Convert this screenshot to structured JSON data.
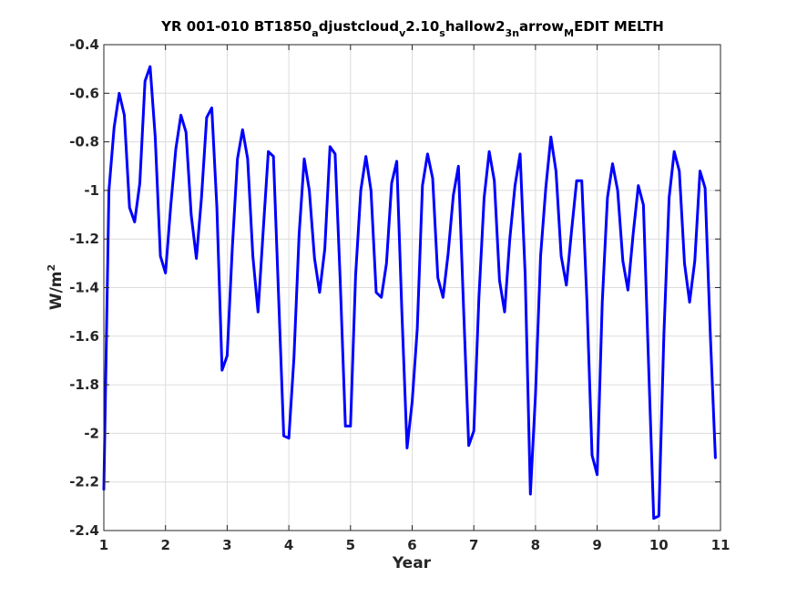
{
  "chart_data": {
    "type": "line",
    "title": {
      "parts": [
        {
          "text": "YR 001-010 BT1850",
          "shift": "base"
        },
        {
          "text": "a",
          "shift": "sub"
        },
        {
          "text": "djustcloud",
          "shift": "base"
        },
        {
          "text": "v",
          "shift": "sub"
        },
        {
          "text": "2.10",
          "shift": "base"
        },
        {
          "text": "s",
          "shift": "sub"
        },
        {
          "text": "hallow2",
          "shift": "base"
        },
        {
          "text": "3n",
          "shift": "sub"
        },
        {
          "text": "arrow",
          "shift": "base"
        },
        {
          "text": "M",
          "shift": "sub"
        },
        {
          "text": "EDIT MELTH",
          "shift": "base"
        }
      ]
    },
    "xlabel": "Year",
    "ylabel": {
      "base": "W/m",
      "sup": "2"
    },
    "xlim": [
      1,
      11
    ],
    "ylim": [
      -2.4,
      -0.4
    ],
    "xticks": [
      "1",
      "2",
      "3",
      "4",
      "5",
      "6",
      "7",
      "8",
      "9",
      "10",
      "11"
    ],
    "yticks": [
      "-0.4",
      "-0.6",
      "-0.8",
      "-1",
      "-1.2",
      "-1.4",
      "-1.6",
      "-1.8",
      "-2",
      "-2.2",
      "-2.4"
    ],
    "grid": true,
    "line_color": "#0000ff",
    "series": [
      {
        "x": [
          1.0,
          1.083,
          1.167,
          1.25,
          1.333,
          1.417,
          1.5,
          1.583,
          1.667,
          1.75,
          1.833,
          1.917,
          2.0,
          2.083,
          2.167,
          2.25,
          2.333,
          2.417,
          2.5,
          2.583,
          2.667,
          2.75,
          2.833,
          2.917,
          3.0,
          3.083,
          3.167,
          3.25,
          3.333,
          3.417,
          3.5,
          3.583,
          3.667,
          3.75,
          3.833,
          3.917,
          4.0,
          4.083,
          4.167,
          4.25,
          4.333,
          4.417,
          4.5,
          4.583,
          4.667,
          4.75,
          4.833,
          4.917,
          5.0,
          5.083,
          5.167,
          5.25,
          5.333,
          5.417,
          5.5,
          5.583,
          5.667,
          5.75,
          5.833,
          5.917,
          6.0,
          6.083,
          6.167,
          6.25,
          6.333,
          6.417,
          6.5,
          6.583,
          6.667,
          6.75,
          6.833,
          6.917,
          7.0,
          7.083,
          7.167,
          7.25,
          7.333,
          7.417,
          7.5,
          7.583,
          7.667,
          7.75,
          7.833,
          7.917,
          8.0,
          8.083,
          8.167,
          8.25,
          8.333,
          8.417,
          8.5,
          8.583,
          8.667,
          8.75,
          8.833,
          8.917,
          9.0,
          9.083,
          9.167,
          9.25,
          9.333,
          9.417,
          9.5,
          9.583,
          9.667,
          9.75,
          9.833,
          9.917,
          10.0,
          10.083,
          10.167,
          10.25,
          10.333,
          10.417,
          10.5,
          10.583,
          10.667,
          10.75,
          10.833,
          10.917
        ],
        "y": [
          -2.23,
          -1.0,
          -0.74,
          -0.6,
          -0.69,
          -1.07,
          -1.13,
          -0.97,
          -0.55,
          -0.49,
          -0.78,
          -1.27,
          -1.34,
          -1.07,
          -0.83,
          -0.69,
          -0.76,
          -1.1,
          -1.28,
          -1.03,
          -0.7,
          -0.66,
          -1.07,
          -1.74,
          -1.68,
          -1.24,
          -0.87,
          -0.75,
          -0.87,
          -1.27,
          -1.5,
          -1.17,
          -0.84,
          -0.86,
          -1.43,
          -2.01,
          -2.02,
          -1.69,
          -1.18,
          -0.87,
          -1.0,
          -1.28,
          -1.42,
          -1.24,
          -0.82,
          -0.85,
          -1.37,
          -1.97,
          -1.97,
          -1.35,
          -1.0,
          -0.86,
          -1.0,
          -1.42,
          -1.44,
          -1.3,
          -0.97,
          -0.88,
          -1.5,
          -2.06,
          -1.87,
          -1.57,
          -0.98,
          -0.85,
          -0.95,
          -1.36,
          -1.44,
          -1.26,
          -1.02,
          -0.9,
          -1.48,
          -2.05,
          -1.99,
          -1.44,
          -1.03,
          -0.84,
          -0.96,
          -1.37,
          -1.5,
          -1.2,
          -0.98,
          -0.85,
          -1.35,
          -2.25,
          -1.84,
          -1.27,
          -0.99,
          -0.78,
          -0.92,
          -1.27,
          -1.39,
          -1.17,
          -0.96,
          -0.96,
          -1.45,
          -2.09,
          -2.17,
          -1.46,
          -1.03,
          -0.89,
          -1.0,
          -1.29,
          -1.41,
          -1.18,
          -0.98,
          -1.06,
          -1.71,
          -2.35,
          -2.34,
          -1.59,
          -1.03,
          -0.84,
          -0.92,
          -1.3,
          -1.46,
          -1.29,
          -0.92,
          -0.99,
          -1.58,
          -2.1
        ]
      }
    ]
  }
}
